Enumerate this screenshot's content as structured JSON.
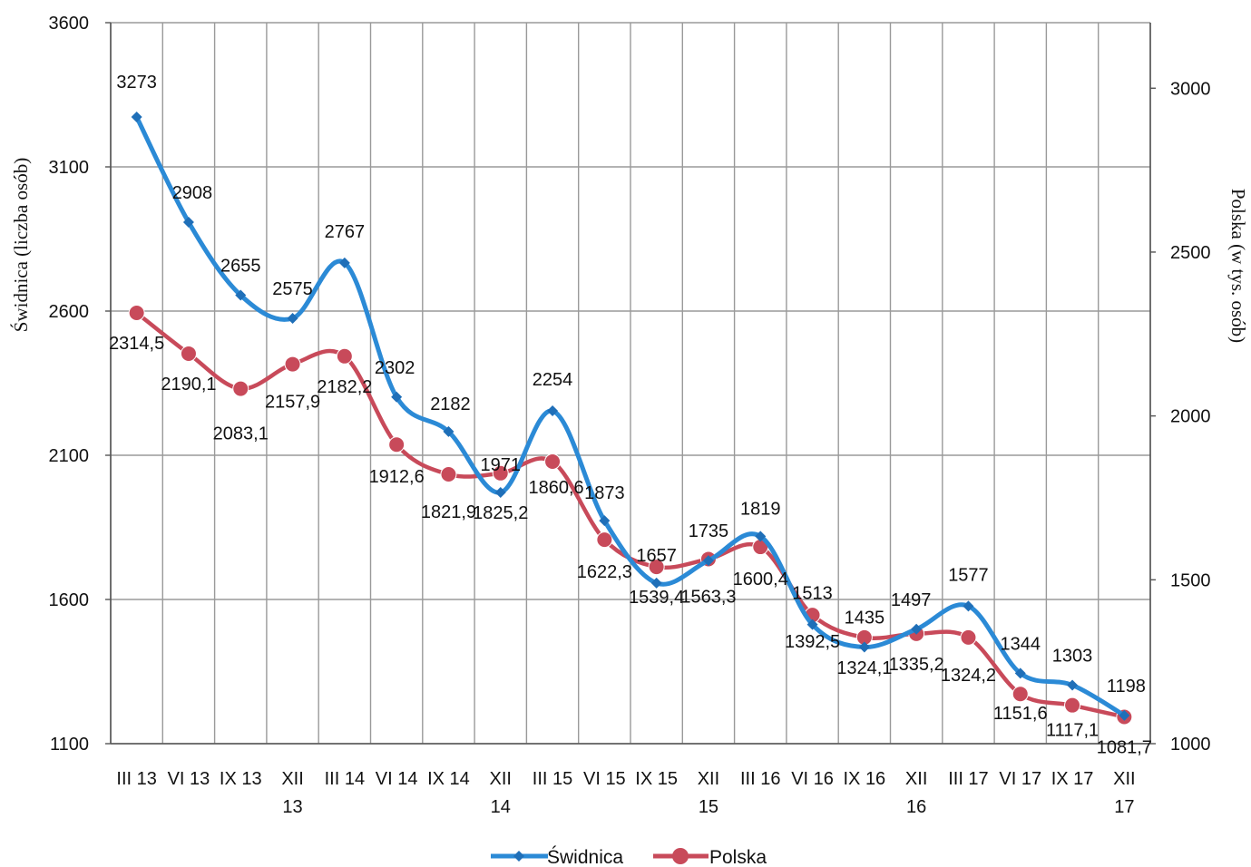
{
  "chart_data": {
    "type": "line",
    "categories": [
      [
        "III 13"
      ],
      [
        "VI 13"
      ],
      [
        "IX 13"
      ],
      [
        "XII",
        "13"
      ],
      [
        "III 14"
      ],
      [
        "VI 14"
      ],
      [
        "IX 14"
      ],
      [
        "XII",
        "14"
      ],
      [
        "III 15"
      ],
      [
        "VI 15"
      ],
      [
        "IX 15"
      ],
      [
        "XII",
        "15"
      ],
      [
        "III 16"
      ],
      [
        "VI 16"
      ],
      [
        "IX 16"
      ],
      [
        "XII",
        "16"
      ],
      [
        "III 17"
      ],
      [
        "VI 17"
      ],
      [
        "IX 17"
      ],
      [
        "XII",
        "17"
      ]
    ],
    "ylabel_left": "Świdnica (liczba osób)",
    "ylabel_right": "Polska  (w tys. osób)",
    "ylim_left": [
      1100,
      3600
    ],
    "yticks_left": [
      "1100",
      "1600",
      "2100",
      "2600",
      "3100",
      "3600"
    ],
    "ylim_right": [
      1000,
      3200
    ],
    "yticks_right": [
      "1000",
      "1500",
      "2000",
      "2500",
      "3000"
    ],
    "grid": true,
    "legend_position": "bottom",
    "series": [
      {
        "name": "Świdnica",
        "axis": "left",
        "color": "#2b8ad6",
        "values": [
          3273,
          2908,
          2655,
          2575,
          2767,
          2302,
          2182,
          1971,
          2254,
          1873,
          1657,
          1735,
          1819,
          1513,
          1435,
          1497,
          1577,
          1344,
          1303,
          1198
        ],
        "labels": [
          "3273",
          "2908",
          "2655",
          "2575",
          "2767",
          "2302",
          "2182",
          "1971",
          "2254",
          "1873",
          "1657",
          "1735",
          "1819",
          "1513",
          "1435",
          "1497",
          "1577",
          "1344",
          "1303",
          "1198"
        ]
      },
      {
        "name": "Polska",
        "axis": "right",
        "color": "#c84a5a",
        "values": [
          2314.5,
          2190.1,
          2083.1,
          2157.9,
          2182.2,
          1912.6,
          1821.9,
          1825.2,
          1860.6,
          1622.3,
          1539.4,
          1563.3,
          1600.4,
          1392.5,
          1324.1,
          1335.2,
          1324.2,
          1151.6,
          1117.1,
          1081.7
        ],
        "labels": [
          "2314,5",
          "2190,1",
          "2083,1",
          "2157,9",
          "2182,2",
          "1912,6",
          "1821,9",
          "1825,2",
          "1860,6",
          "1622,3",
          "1539,4",
          "1563,3",
          "1600,4",
          "1392,5",
          "1324,1",
          "1335,2",
          "1324,2",
          "1151,6",
          "1117,1",
          "1081,7"
        ]
      }
    ]
  }
}
